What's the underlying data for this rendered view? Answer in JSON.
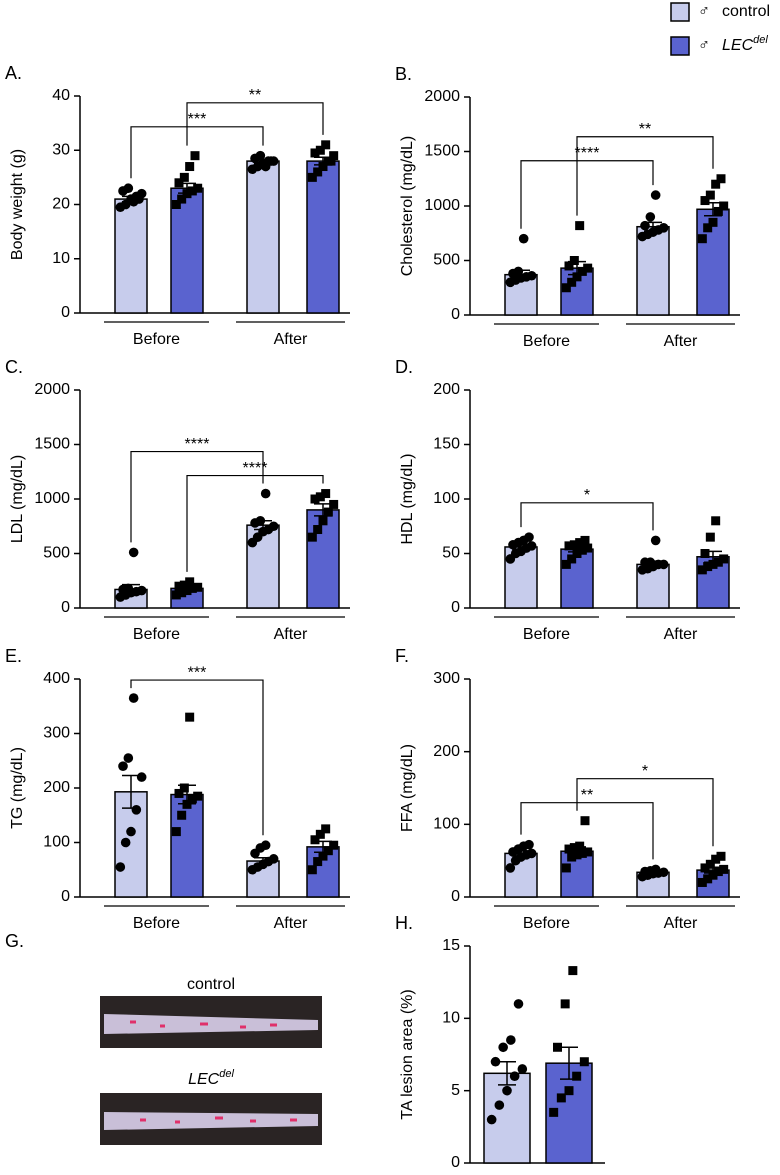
{
  "legend": [
    {
      "symbol": "♂",
      "name": "control",
      "color": "#c7ccec",
      "marker": "circle"
    },
    {
      "symbol": "♂",
      "name": "LEC",
      "name_sup": "del",
      "color": "#5a63cf",
      "marker": "square"
    }
  ],
  "photos": {
    "panel_label": "G.",
    "images": [
      {
        "caption": "control"
      },
      {
        "caption": "LEC",
        "caption_sup": "del"
      }
    ]
  },
  "chart_data": [
    {
      "type": "bar",
      "panel_label": "A.",
      "ylabel": "Body weight (g)",
      "categories": [
        "Before",
        "After"
      ],
      "ylim": [
        0,
        40
      ],
      "yticks": [
        0,
        10,
        20,
        30,
        40
      ],
      "series": [
        {
          "values": [
            21,
            28
          ],
          "errors": [
            0.5,
            0.3
          ],
          "points": [
            [
              19.5,
              20,
              21,
              21.5,
              22,
              22.5,
              23,
              20.5,
              21
            ],
            [
              26.5,
              27,
              27.5,
              28,
              28,
              28.5,
              29,
              27,
              28
            ]
          ]
        },
        {
          "values": [
            23,
            28
          ],
          "errors": [
            0.9,
            0.7
          ],
          "points": [
            [
              20,
              21,
              22,
              22.5,
              23,
              24,
              25,
              27,
              29
            ],
            [
              25,
              26,
              27,
              28,
              29,
              29.5,
              30,
              31,
              28
            ]
          ]
        }
      ],
      "annotations": [
        {
          "text": "***",
          "series": 0
        },
        {
          "text": "**",
          "series": 1
        }
      ]
    },
    {
      "type": "bar",
      "panel_label": "B.",
      "ylabel": "Cholesterol (mg/dL)",
      "categories": [
        "Before",
        "After"
      ],
      "ylim": [
        0,
        2000
      ],
      "yticks": [
        0,
        500,
        1000,
        1500,
        2000
      ],
      "series": [
        {
          "values": [
            370,
            810
          ],
          "errors": [
            40,
            40
          ],
          "points": [
            [
              300,
              320,
              340,
              350,
              360,
              380,
              400,
              700
            ],
            [
              720,
              740,
              760,
              780,
              800,
              820,
              900,
              1100
            ]
          ]
        },
        {
          "values": [
            430,
            970
          ],
          "errors": [
            60,
            60
          ],
          "points": [
            [
              250,
              300,
              350,
              400,
              430,
              450,
              500,
              820
            ],
            [
              700,
              800,
              850,
              950,
              1000,
              1050,
              1100,
              1200,
              1250
            ]
          ]
        }
      ],
      "annotations": [
        {
          "text": "****",
          "series": 0
        },
        {
          "text": "**",
          "series": 1
        }
      ]
    },
    {
      "type": "bar",
      "panel_label": "C.",
      "ylabel": "LDL (mg/dL)",
      "categories": [
        "Before",
        "After"
      ],
      "ylim": [
        0,
        2000
      ],
      "yticks": [
        0,
        500,
        1000,
        1500,
        2000
      ],
      "series": [
        {
          "values": [
            170,
            760
          ],
          "errors": [
            45,
            40
          ],
          "points": [
            [
              100,
              120,
              140,
              150,
              160,
              170,
              180,
              510
            ],
            [
              600,
              650,
              700,
              720,
              750,
              780,
              800,
              1050
            ]
          ]
        },
        {
          "values": [
            180,
            900
          ],
          "errors": [
            15,
            55
          ],
          "points": [
            [
              120,
              140,
              160,
              180,
              190,
              200,
              210,
              240
            ],
            [
              650,
              720,
              800,
              880,
              950,
              1000,
              1020,
              1050
            ]
          ]
        }
      ],
      "annotations": [
        {
          "text": "****",
          "series": 1
        },
        {
          "text": "****",
          "series": 0
        }
      ]
    },
    {
      "type": "bar",
      "panel_label": "D.",
      "ylabel": "HDL (mg/dL)",
      "categories": [
        "Before",
        "After"
      ],
      "ylim": [
        0,
        200
      ],
      "yticks": [
        0,
        50,
        100,
        150,
        200
      ],
      "series": [
        {
          "values": [
            56,
            40
          ],
          "errors": [
            2,
            3
          ],
          "points": [
            [
              45,
              50,
              52,
              55,
              57,
              58,
              60,
              62,
              65
            ],
            [
              35,
              36,
              38,
              40,
              40,
              42,
              42,
              62
            ]
          ]
        },
        {
          "values": [
            54,
            47
          ],
          "errors": [
            2.5,
            5
          ],
          "points": [
            [
              40,
              45,
              50,
              53,
              55,
              57,
              58,
              60,
              62
            ],
            [
              35,
              38,
              40,
              42,
              45,
              50,
              65,
              80
            ]
          ]
        }
      ],
      "annotations": [
        {
          "text": "*",
          "series": 0
        }
      ]
    },
    {
      "type": "bar",
      "panel_label": "E.",
      "ylabel": "TG (mg/dL)",
      "categories": [
        "Before",
        "After"
      ],
      "ylim": [
        0,
        400
      ],
      "yticks": [
        0,
        100,
        200,
        300,
        400
      ],
      "series": [
        {
          "values": [
            193,
            66
          ],
          "errors": [
            30,
            6
          ],
          "points": [
            [
              55,
              100,
              120,
              160,
              220,
              240,
              255,
              365
            ],
            [
              50,
              55,
              60,
              65,
              70,
              80,
              90,
              95
            ]
          ]
        },
        {
          "values": [
            188,
            92
          ],
          "errors": [
            17,
            10
          ],
          "points": [
            [
              120,
              150,
              170,
              180,
              185,
              190,
              200,
              330
            ],
            [
              50,
              65,
              75,
              85,
              95,
              105,
              115,
              125
            ]
          ]
        }
      ],
      "annotations": [
        {
          "text": "***",
          "series": 0
        }
      ]
    },
    {
      "type": "bar",
      "panel_label": "F.",
      "ylabel": "FFA (mg/dL)",
      "categories": [
        "Before",
        "After"
      ],
      "ylim": [
        0,
        300
      ],
      "yticks": [
        0,
        100,
        200,
        300
      ],
      "series": [
        {
          "values": [
            60,
            34
          ],
          "errors": [
            3.5,
            1.5
          ],
          "points": [
            [
              40,
              50,
              55,
              58,
              60,
              62,
              66,
              70,
              72
            ],
            [
              28,
              30,
              32,
              33,
              34,
              35,
              36,
              38
            ]
          ]
        },
        {
          "values": [
            63,
            37
          ],
          "errors": [
            6,
            4
          ],
          "points": [
            [
              40,
              55,
              58,
              60,
              62,
              66,
              68,
              70,
              105
            ],
            [
              20,
              25,
              30,
              35,
              38,
              40,
              45,
              52,
              56
            ]
          ]
        }
      ],
      "annotations": [
        {
          "text": "**",
          "series": 0
        },
        {
          "text": "*",
          "series": 1
        }
      ]
    },
    {
      "type": "bar",
      "panel_label": "H.",
      "ylabel": "TA lesion area (%)",
      "categories": [
        null
      ],
      "ylim": [
        0,
        15
      ],
      "yticks": [
        0,
        5,
        10,
        15
      ],
      "series": [
        {
          "values": [
            6.2
          ],
          "errors": [
            0.8
          ],
          "points": [
            [
              3,
              4,
              5,
              6,
              6.5,
              7,
              8,
              8.5,
              11
            ]
          ]
        },
        {
          "values": [
            6.9
          ],
          "errors": [
            1.1
          ],
          "points": [
            [
              3.5,
              4.5,
              5,
              6,
              7,
              8,
              11,
              13.3
            ]
          ]
        }
      ],
      "annotations": []
    }
  ]
}
